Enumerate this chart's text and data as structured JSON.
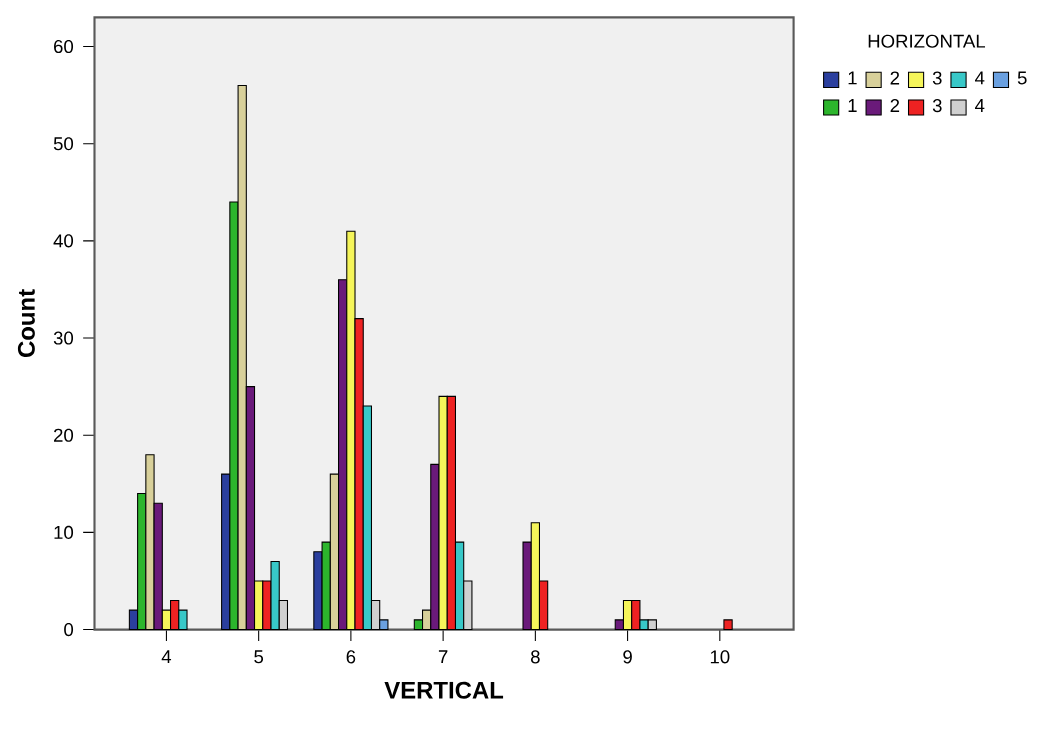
{
  "chart_data": {
    "type": "bar",
    "xlabel": "VERTICAL",
    "ylabel": "Count",
    "legend_title": "HORIZONTAL",
    "legend": "top right",
    "grid": false,
    "categories": [
      "4",
      "5",
      "6",
      "7",
      "8",
      "9",
      "10"
    ],
    "ylim": [
      0,
      63
    ],
    "yticks": [
      0,
      10,
      20,
      30,
      40,
      50,
      60
    ],
    "series": [
      {
        "name": "1",
        "color": "#2b3f9e",
        "values": [
          2,
          16,
          8,
          null,
          null,
          null,
          null
        ]
      },
      {
        "name": "1",
        "color": "#2cb52c",
        "values": [
          14,
          44,
          9,
          1,
          null,
          null,
          null
        ]
      },
      {
        "name": "2",
        "color": "#d8d09a",
        "values": [
          18,
          56,
          16,
          2,
          null,
          null,
          null
        ]
      },
      {
        "name": "2",
        "color": "#6a1a7a",
        "values": [
          13,
          25,
          36,
          17,
          9,
          1,
          null
        ]
      },
      {
        "name": "3",
        "color": "#f5f55a",
        "values": [
          2,
          5,
          41,
          24,
          11,
          3,
          null
        ]
      },
      {
        "name": "3",
        "color": "#ee2222",
        "values": [
          3,
          5,
          32,
          24,
          5,
          3,
          1
        ]
      },
      {
        "name": "4",
        "color": "#38c8c8",
        "values": [
          2,
          7,
          23,
          9,
          null,
          1,
          null
        ]
      },
      {
        "name": "4",
        "color": "#d0d0d0",
        "values": [
          null,
          3,
          3,
          5,
          null,
          1,
          null
        ]
      },
      {
        "name": "5",
        "color": "#6aa0e0",
        "values": [
          null,
          null,
          1,
          null,
          null,
          null,
          null
        ]
      }
    ]
  }
}
